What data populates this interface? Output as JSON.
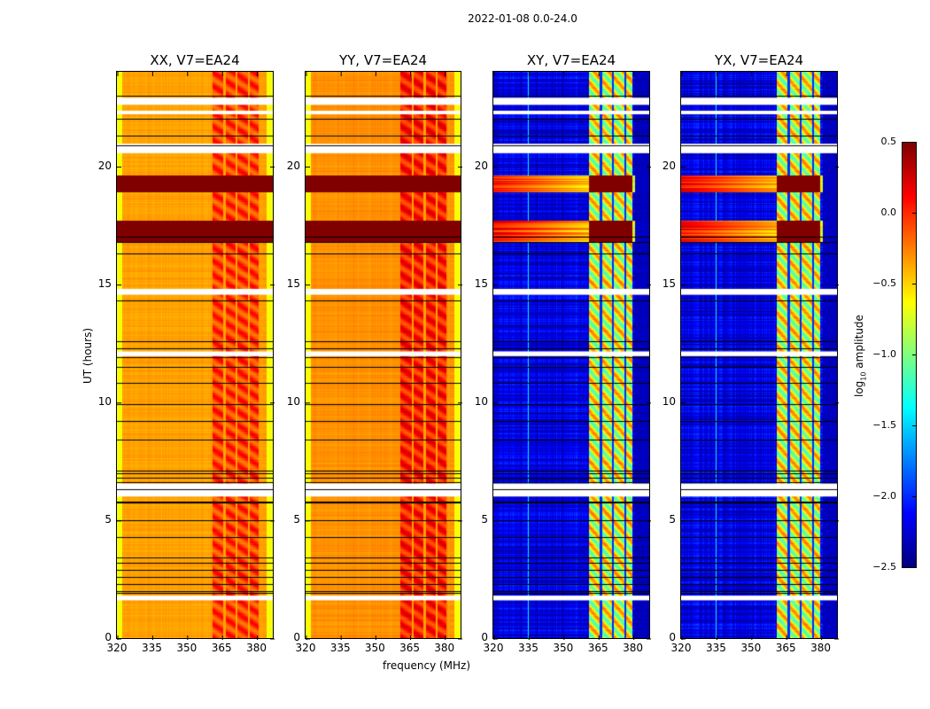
{
  "suptitle": "2022-01-08 0.0-24.0",
  "chart_data": [
    {
      "type": "heatmap",
      "title": "XX, V7=EA24",
      "xlabel": "",
      "ylabel": "UT (hours)",
      "xlim": [
        320,
        387
      ],
      "ylim": [
        0,
        24
      ],
      "xticks": [
        320,
        335,
        350,
        365,
        380
      ],
      "yticks": [
        0,
        5,
        10,
        15,
        20
      ],
      "colormap": "jet",
      "background_log10_amplitude": -0.35,
      "band_log10_amplitude": -0.05,
      "band_range_mhz": [
        361,
        383
      ]
    },
    {
      "type": "heatmap",
      "title": "YY, V7=EA24",
      "xlabel": "frequency (MHz)",
      "ylabel": "",
      "xlim": [
        320,
        387
      ],
      "ylim": [
        0,
        24
      ],
      "xticks": [
        320,
        335,
        350,
        365,
        380
      ],
      "yticks": [
        0,
        5,
        10,
        15,
        20
      ],
      "colormap": "jet",
      "background_log10_amplitude": -0.3,
      "band_log10_amplitude": 0.05,
      "band_range_mhz": [
        361,
        383
      ]
    },
    {
      "type": "heatmap",
      "title": "XY, V7=EA24",
      "xlabel": "",
      "ylabel": "",
      "xlim": [
        320,
        387
      ],
      "ylim": [
        0,
        24
      ],
      "xticks": [
        320,
        335,
        350,
        365,
        380
      ],
      "yticks": [
        0,
        5,
        10,
        15,
        20
      ],
      "colormap": "jet",
      "background_log10_amplitude": -2.2,
      "band_log10_amplitude": -0.7,
      "band_range_mhz": [
        361,
        380
      ]
    },
    {
      "type": "heatmap",
      "title": "YX, V7=EA24",
      "xlabel": "",
      "ylabel": "",
      "xlim": [
        320,
        387
      ],
      "ylim": [
        0,
        24
      ],
      "xticks": [
        320,
        335,
        350,
        365,
        380
      ],
      "yticks": [
        0,
        5,
        10,
        15,
        20
      ],
      "colormap": "jet",
      "background_log10_amplitude": -2.2,
      "band_log10_amplitude": -0.7,
      "band_range_mhz": [
        361,
        380
      ]
    }
  ],
  "flagged_hours": {
    "white_gaps": [
      [
        22.6,
        22.9
      ],
      [
        22.2,
        22.35
      ],
      [
        20.55,
        20.95
      ],
      [
        14.55,
        14.8
      ],
      [
        11.95,
        12.15
      ],
      [
        6.0,
        6.55
      ],
      [
        1.6,
        1.8
      ]
    ],
    "black_lines": [
      23.0,
      22.0,
      21.3,
      20.9,
      17.0,
      16.8,
      16.3,
      14.3,
      12.6,
      12.3,
      11.9,
      11.5,
      10.8,
      9.9,
      9.2,
      8.4,
      7.1,
      7.0,
      6.8,
      6.6,
      6.3,
      5.8,
      5.75,
      5.0,
      4.3,
      3.4,
      3.2,
      2.9,
      2.6,
      2.3,
      2.0,
      1.9
    ],
    "high_amplitude_hours": [
      [
        18.9,
        19.6
      ],
      [
        16.8,
        17.7
      ]
    ]
  },
  "colorbar": {
    "label_main": "log",
    "label_sub": "10",
    "label_rest": " amplitude",
    "ticks": [
      "0.5",
      "0.0",
      "−0.5",
      "−1.0",
      "−1.5",
      "−2.0",
      "−2.5"
    ],
    "range": [
      -2.5,
      0.5
    ]
  },
  "labels": {
    "ylabel": "UT (hours)",
    "xlabel": "frequency (MHz)"
  }
}
